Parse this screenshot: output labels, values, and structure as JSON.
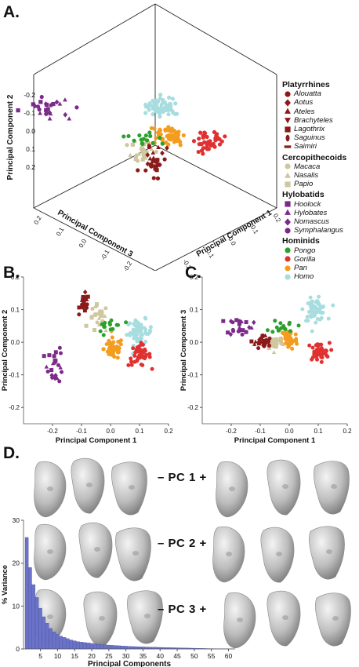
{
  "panels": {
    "a": "A.",
    "b": "B.",
    "c": "C.",
    "d": "D."
  },
  "legend": [
    {
      "group": "Platyrrhines",
      "items": [
        {
          "name": "Alouatta",
          "color": "#8b1a1a",
          "marker": "circle"
        },
        {
          "name": "Aotus",
          "color": "#8b1a1a",
          "marker": "diamond"
        },
        {
          "name": "Ateles",
          "color": "#8b1a1a",
          "marker": "triangle"
        },
        {
          "name": "Brachyteles",
          "color": "#8b1a1a",
          "marker": "triangle-down"
        },
        {
          "name": "Lagothrix",
          "color": "#8b1a1a",
          "marker": "square"
        },
        {
          "name": "Saguinus",
          "color": "#8b1a1a",
          "marker": "ellipse"
        },
        {
          "name": "Saimiri",
          "color": "#8b1a1a",
          "marker": "bar"
        }
      ]
    },
    {
      "group": "Cercopithecoids",
      "items": [
        {
          "name": "Macaca",
          "color": "#cfc79e",
          "marker": "circle"
        },
        {
          "name": "Nasalis",
          "color": "#cfc79e",
          "marker": "triangle"
        },
        {
          "name": "Papio",
          "color": "#cfc79e",
          "marker": "square"
        }
      ]
    },
    {
      "group": "Hylobatids",
      "items": [
        {
          "name": "Hoolock",
          "color": "#7b2a8a",
          "marker": "square"
        },
        {
          "name": "Hylobates",
          "color": "#7b2a8a",
          "marker": "triangle"
        },
        {
          "name": "Nomascus",
          "color": "#7b2a8a",
          "marker": "diamond"
        },
        {
          "name": "Symphalangus",
          "color": "#7b2a8a",
          "marker": "circle"
        }
      ]
    },
    {
      "group": "Hominids",
      "items": [
        {
          "name": "Pongo",
          "color": "#2ca02c",
          "marker": "circle"
        },
        {
          "name": "Gorilla",
          "color": "#e03030",
          "marker": "circle"
        },
        {
          "name": "Pan",
          "color": "#f39c1f",
          "marker": "circle"
        },
        {
          "name": "Homo",
          "color": "#a8dde0",
          "marker": "circle"
        }
      ]
    }
  ],
  "colors": {
    "platy": "#8b1a1a",
    "cerco": "#cfc79e",
    "hylo": "#7b2a8a",
    "pongo": "#2ca02c",
    "gorilla": "#e03030",
    "pan": "#f39c1f",
    "homo": "#a8dde0",
    "bar": "#6b73c9"
  },
  "pc_rows": [
    "– PC 1 +",
    "– PC 2 +",
    "– PC 3 +"
  ],
  "chart_data": [
    {
      "type": "scatter",
      "panel": "A",
      "projection": "3d-isometric",
      "axes": [
        {
          "label": "Principal Component 2",
          "ticks": [
            "-0.2",
            "-0.1",
            "0.0",
            "0.1",
            "0.2"
          ]
        },
        {
          "label": "Principal Component 3",
          "ticks": [
            "0.2",
            "0.1",
            "0.0",
            "-0.1",
            "-0.2",
            "-0.3"
          ]
        },
        {
          "label": "Principal Component 1",
          "ticks": [
            "-0.3",
            "-0.2",
            "-0.1",
            "0.0",
            "0.1",
            "0.2"
          ]
        }
      ],
      "groups": [
        {
          "name": "Homo",
          "center": [
            0.1,
            -0.15,
            0.1
          ],
          "n": 60
        },
        {
          "name": "Gorilla",
          "center": [
            0.12,
            -0.03,
            -0.02
          ],
          "n": 40
        },
        {
          "name": "Pan",
          "center": [
            0.0,
            -0.01,
            -0.05
          ],
          "n": 50
        },
        {
          "name": "Pongo",
          "center": [
            -0.02,
            0.02,
            0.02
          ],
          "n": 15
        },
        {
          "name": "Platyrrhines",
          "center": [
            -0.08,
            0.12,
            -0.1
          ],
          "n": 30
        },
        {
          "name": "Cercopithecoids",
          "center": [
            -0.07,
            0.08,
            -0.05
          ],
          "n": 25
        },
        {
          "name": "Hylobatids",
          "center": [
            -0.2,
            -0.05,
            0.09
          ],
          "n": 25
        }
      ]
    },
    {
      "type": "scatter",
      "panel": "B",
      "xlabel": "Principal Component 1",
      "ylabel": "Principal Component 2",
      "xlim": [
        -0.3,
        0.2
      ],
      "ylim": [
        -0.25,
        0.2
      ],
      "xticks": [
        "-0.2",
        "-0.1",
        "0.0",
        "0.1",
        "0.2"
      ],
      "yticks": [
        "0.2",
        "0.1",
        "0.0",
        "-0.1",
        "-0.2"
      ],
      "groups": [
        {
          "name": "Homo",
          "center": [
            0.1,
            0.03
          ],
          "spread": [
            0.04,
            0.035
          ],
          "n": 60
        },
        {
          "name": "Gorilla",
          "center": [
            0.1,
            -0.04
          ],
          "spread": [
            0.035,
            0.03
          ],
          "n": 40
        },
        {
          "name": "Pan",
          "center": [
            0.01,
            -0.02
          ],
          "spread": [
            0.03,
            0.03
          ],
          "n": 50
        },
        {
          "name": "Pongo",
          "center": [
            0.0,
            0.05
          ],
          "spread": [
            0.04,
            0.03
          ],
          "n": 15
        },
        {
          "name": "Platyrrhines",
          "center": [
            -0.09,
            0.12
          ],
          "spread": [
            0.015,
            0.025
          ],
          "n": 30
        },
        {
          "name": "Cercopithecoids",
          "center": [
            -0.04,
            0.07
          ],
          "spread": [
            0.03,
            0.04
          ],
          "n": 25
        },
        {
          "name": "Hylobatids",
          "center": [
            -0.19,
            -0.07
          ],
          "spread": [
            0.025,
            0.05
          ],
          "n": 25
        }
      ]
    },
    {
      "type": "scatter",
      "panel": "C",
      "xlabel": "Principal Component 1",
      "ylabel": "Principal Component 3",
      "xlim": [
        -0.3,
        0.2
      ],
      "ylim": [
        -0.25,
        0.2
      ],
      "xticks": [
        "-0.2",
        "-0.1",
        "0.0",
        "0.1",
        "0.2"
      ],
      "yticks": [
        "0.2",
        "0.1",
        "0.0",
        "-0.1",
        "-0.2"
      ],
      "groups": [
        {
          "name": "Homo",
          "center": [
            0.09,
            0.1
          ],
          "spread": [
            0.035,
            0.03
          ],
          "n": 60
        },
        {
          "name": "Gorilla",
          "center": [
            0.1,
            -0.03
          ],
          "spread": [
            0.035,
            0.025
          ],
          "n": 40
        },
        {
          "name": "Pan",
          "center": [
            0.0,
            0.01
          ],
          "spread": [
            0.025,
            0.03
          ],
          "n": 50
        },
        {
          "name": "Pongo",
          "center": [
            -0.02,
            0.05
          ],
          "spread": [
            0.04,
            0.02
          ],
          "n": 15
        },
        {
          "name": "Platyrrhines",
          "center": [
            -0.09,
            0.0
          ],
          "spread": [
            0.025,
            0.02
          ],
          "n": 30
        },
        {
          "name": "Cercopithecoids",
          "center": [
            -0.05,
            0.0
          ],
          "spread": [
            0.025,
            0.02
          ],
          "n": 25
        },
        {
          "name": "Hylobatids",
          "center": [
            -0.17,
            0.05
          ],
          "spread": [
            0.04,
            0.025
          ],
          "n": 25
        }
      ]
    },
    {
      "type": "bar",
      "panel": "D",
      "xlabel": "Principal Components",
      "ylabel": "% Variance",
      "ylim": [
        0,
        30
      ],
      "yticks": [
        "30",
        "20",
        "10",
        "0"
      ],
      "xticks": [
        "5",
        "10",
        "15",
        "20",
        "25",
        "30",
        "35",
        "40",
        "45",
        "50",
        "55",
        "60"
      ],
      "values": [
        26,
        19,
        15,
        12,
        9.5,
        7.5,
        6,
        4.8,
        4,
        3.4,
        3,
        2.7,
        2.4,
        2.1,
        1.9,
        1.7,
        1.6,
        1.5,
        1.4,
        1.3,
        1.2,
        1.1,
        1.0,
        0.95,
        0.9,
        0.85,
        0.8,
        0.75,
        0.7,
        0.65,
        0.6,
        0.57,
        0.54,
        0.51,
        0.48,
        0.45,
        0.43,
        0.41,
        0.39,
        0.37,
        0.35,
        0.33,
        0.31,
        0.29,
        0.27,
        0.25,
        0.23,
        0.21,
        0.19,
        0.17,
        0.15,
        0.13,
        0.11,
        0.09,
        0.08,
        0.07,
        0.06,
        0.05,
        0.04,
        0.03,
        0.02
      ]
    }
  ]
}
